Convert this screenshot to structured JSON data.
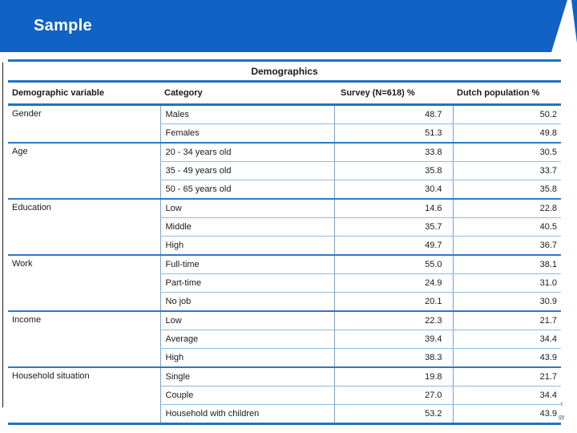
{
  "colors": {
    "header_bar": "#1062C5",
    "thick_line": "#2272C3",
    "group_line": "#2E79C0",
    "thin_line": "#8FBBDF",
    "vertical_line": "#6CA6D9",
    "table_text": "#1A1A1A",
    "title_text": "#FFFFFF"
  },
  "header": {
    "title": "Sample"
  },
  "table": {
    "title": "Demographics",
    "columns": [
      "Demographic variable",
      "Category",
      "Survey (N=618) %",
      "Dutch population %"
    ],
    "groups": [
      {
        "variable": "Gender",
        "rows": [
          {
            "category": "Males",
            "survey": "48.7",
            "population": "50.2"
          },
          {
            "category": "Females",
            "survey": "51.3",
            "population": "49.8"
          }
        ]
      },
      {
        "variable": "Age",
        "rows": [
          {
            "category": "20 - 34 years old",
            "survey": "33.8",
            "population": "30.5"
          },
          {
            "category": "35 - 49 years old",
            "survey": "35.8",
            "population": "33.7"
          },
          {
            "category": "50 - 65 years old",
            "survey": "30.4",
            "population": "35.8"
          }
        ]
      },
      {
        "variable": "Education",
        "rows": [
          {
            "category": "Low",
            "survey": "14.6",
            "population": "22.8"
          },
          {
            "category": "Middle",
            "survey": "35.7",
            "population": "40.5"
          },
          {
            "category": "High",
            "survey": "49.7",
            "population": "36.7"
          }
        ]
      },
      {
        "variable": "Work",
        "rows": [
          {
            "category": "Full-time",
            "survey": "55.0",
            "population": "38.1"
          },
          {
            "category": "Part-time",
            "survey": "24.9",
            "population": "31.0"
          },
          {
            "category": "No job",
            "survey": "20.1",
            "population": "30.9"
          }
        ]
      },
      {
        "variable": "Income",
        "rows": [
          {
            "category": "Low",
            "survey": "22.3",
            "population": "21.7"
          },
          {
            "category": "Average",
            "survey": "39.4",
            "population": "34.4"
          },
          {
            "category": "High",
            "survey": "38.3",
            "population": "43.9"
          }
        ]
      },
      {
        "variable": "Household situation",
        "rows": [
          {
            "category": "Single",
            "survey": "19.8",
            "population": "21.7"
          },
          {
            "category": "Couple",
            "survey": "27.0",
            "population": "34.4"
          },
          {
            "category": "Household with children",
            "survey": "53.2",
            "population": "43.9"
          }
        ]
      }
    ]
  },
  "edge_text": {
    "fragment_top": "t",
    "fragment_bottom": "gy"
  }
}
